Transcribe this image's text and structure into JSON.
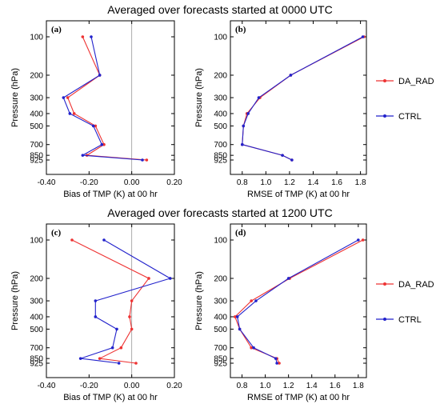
{
  "titles": {
    "top": "Averaged over forecasts started at 0000 UTC",
    "bottom": "Averaged over forecasts started at 1200 UTC"
  },
  "legend": [
    {
      "name": "DA_RAD",
      "color": "#ee3333"
    },
    {
      "name": "CTRL",
      "color": "#2222cc"
    }
  ],
  "colors": {
    "DA_RAD": "#ee3333",
    "CTRL": "#2222cc"
  },
  "chart_data": [
    {
      "type": "line",
      "panel_label": "(a)",
      "xlabel": "Bias of TMP (K) at 00 hr",
      "ylabel": "Pressure (hPa)",
      "xlim": [
        -0.4,
        0.2
      ],
      "xticks": [
        "-0.40",
        "-0.20",
        "0.00",
        "0.20"
      ],
      "yticks": [
        100,
        200,
        300,
        400,
        500,
        700,
        850,
        925
      ],
      "y_scale": "log",
      "y_inverted": true,
      "zero_line": true,
      "y": [
        100,
        200,
        300,
        400,
        500,
        700,
        850,
        925
      ],
      "series": [
        {
          "name": "DA_RAD",
          "values": [
            -0.23,
            -0.15,
            -0.3,
            -0.27,
            -0.17,
            -0.13,
            -0.21,
            0.07
          ]
        },
        {
          "name": "CTRL",
          "values": [
            -0.19,
            -0.15,
            -0.32,
            -0.29,
            -0.18,
            -0.14,
            -0.23,
            0.05
          ]
        }
      ]
    },
    {
      "type": "line",
      "panel_label": "(b)",
      "xlabel": "RMSE of TMP (K) at 00 hr",
      "ylabel": "Pressure (hPa)",
      "xlim": [
        0.7,
        1.85
      ],
      "xticks": [
        "0.8",
        "1.0",
        "1.2",
        "1.4",
        "1.6",
        "1.8"
      ],
      "yticks": [
        100,
        200,
        300,
        400,
        500,
        700,
        850,
        925
      ],
      "y_scale": "log",
      "y_inverted": true,
      "y": [
        100,
        200,
        300,
        400,
        500,
        700,
        850,
        925
      ],
      "series": [
        {
          "name": "DA_RAD",
          "values": [
            1.83,
            1.21,
            0.95,
            0.84,
            0.81,
            0.8,
            1.14,
            1.22
          ]
        },
        {
          "name": "CTRL",
          "values": [
            1.82,
            1.21,
            0.94,
            0.85,
            0.81,
            0.8,
            1.14,
            1.22
          ]
        }
      ]
    },
    {
      "type": "line",
      "panel_label": "(c)",
      "xlabel": "Bias of TMP (K) at 00 hr",
      "ylabel": "Pressure (hPa)",
      "xlim": [
        -0.4,
        0.2
      ],
      "xticks": [
        "-0.40",
        "-0.20",
        "0.00",
        "0.20"
      ],
      "yticks": [
        100,
        200,
        300,
        400,
        500,
        700,
        850,
        925
      ],
      "y_scale": "log",
      "y_inverted": true,
      "zero_line": true,
      "y": [
        100,
        200,
        300,
        400,
        500,
        700,
        850,
        925
      ],
      "series": [
        {
          "name": "DA_RAD",
          "values": [
            -0.28,
            0.08,
            0.0,
            -0.01,
            0.0,
            -0.05,
            -0.15,
            0.02
          ]
        },
        {
          "name": "CTRL",
          "values": [
            -0.13,
            0.18,
            -0.17,
            -0.17,
            -0.07,
            -0.09,
            -0.24,
            -0.06
          ]
        }
      ]
    },
    {
      "type": "line",
      "panel_label": "(d)",
      "xlabel": "RMSE of TMP (K) at 00 hr",
      "ylabel": "Pressure (hPa)",
      "xlim": [
        0.7,
        1.87
      ],
      "xticks": [
        "0.8",
        "1.0",
        "1.2",
        "1.4",
        "1.6",
        "1.8"
      ],
      "yticks": [
        100,
        200,
        300,
        400,
        500,
        700,
        850,
        925
      ],
      "y_scale": "log",
      "y_inverted": true,
      "y": [
        100,
        200,
        300,
        400,
        500,
        700,
        850,
        925
      ],
      "series": [
        {
          "name": "DA_RAD",
          "values": [
            1.84,
            1.21,
            0.88,
            0.74,
            0.78,
            0.88,
            1.1,
            1.12
          ]
        },
        {
          "name": "CTRL",
          "values": [
            1.8,
            1.2,
            0.92,
            0.76,
            0.78,
            0.9,
            1.09,
            1.1
          ]
        }
      ]
    }
  ]
}
